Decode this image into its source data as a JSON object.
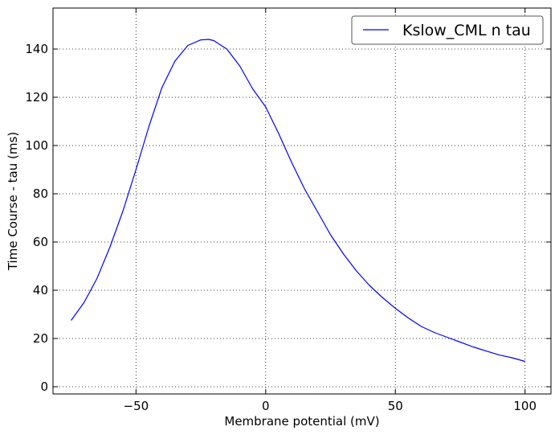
{
  "chart_data": {
    "type": "line",
    "title": "",
    "xlabel": "Membrane potential (mV)",
    "ylabel": "Time Course - tau (ms)",
    "xlim": [
      -82,
      110
    ],
    "ylim": [
      -3,
      157
    ],
    "xticks": [
      -50,
      0,
      50,
      100
    ],
    "xtick_labels": [
      "−50",
      "0",
      "50",
      "100"
    ],
    "yticks": [
      0,
      20,
      40,
      60,
      80,
      100,
      120,
      140
    ],
    "ytick_labels": [
      "0",
      "20",
      "40",
      "60",
      "80",
      "100",
      "120",
      "140"
    ],
    "grid": true,
    "legend": {
      "position": "top-right",
      "entries": [
        "Kslow_CML n tau"
      ]
    },
    "series": [
      {
        "name": "Kslow_CML n tau",
        "color": "#0000ff",
        "x": [
          -75,
          -70,
          -65,
          -60,
          -55,
          -50,
          -45,
          -40,
          -35,
          -30,
          -25,
          -22,
          -20,
          -15,
          -10,
          -5,
          0,
          5,
          10,
          15,
          20,
          25,
          30,
          35,
          40,
          45,
          50,
          55,
          60,
          65,
          70,
          75,
          80,
          85,
          90,
          95,
          100
        ],
        "y": [
          27.5,
          35,
          45,
          58,
          73,
          90,
          108,
          124,
          135,
          141.5,
          143.8,
          144,
          143.5,
          140,
          133,
          123.5,
          116,
          105,
          93,
          82,
          72.5,
          63,
          55,
          48,
          42,
          37,
          32.5,
          28.5,
          25,
          22.5,
          20.5,
          18.5,
          16.5,
          14.8,
          13.2,
          12,
          10.5
        ]
      }
    ]
  }
}
